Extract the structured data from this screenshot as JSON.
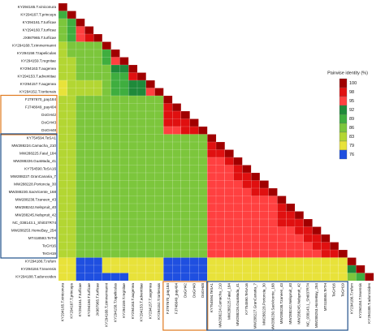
{
  "chart_data": {
    "type": "heatmap",
    "labels": [
      "KY294165.T.viniconura",
      "KY294167.T.princeps",
      "KY294161.T.turficae",
      "KY294160.T.turficae",
      "JX987965.T.turficae",
      "KY294168.T.zimmermanni",
      "KY294158.T.tapeliculas",
      "KY294159.T.regnitae",
      "KY294163.T.augenea",
      "KY294153.T.adventitae",
      "KY294157.T.augenea",
      "KY294152.T.tortienais",
      "FJ797670_pay184",
      "FJ748049_pay404",
      "DoGH42",
      "DoGH43",
      "DoGH48",
      "KY754594.TeSA1",
      "MW288224.Camacha_210",
      "MW288225.Faial_184",
      "MW288226.GuaMada_41",
      "KY754590.TeSA16",
      "MW288227.GranCanaria_7",
      "MW288228.Portoncia_30",
      "MW288230.SaoVicente_168",
      "MW288238.Tzaneen_43",
      "MW288242.Nelspruit_40",
      "MW288245.Nelspruit_42",
      "NC_038143.1_Shi037R74",
      "MW288253.HomeBay_254",
      "MT418593.TeTH",
      "TeGH16",
      "TeGH19",
      "KY294186.T.rufum",
      "KY294184.T.texensis",
      "KY294188.T.aduncoides"
    ],
    "matrix": [
      [
        100
      ],
      [
        91,
        100
      ],
      [
        87,
        89,
        100
      ],
      [
        87,
        89,
        97,
        100
      ],
      [
        87,
        89,
        97,
        99,
        100
      ],
      [
        85,
        86,
        88,
        88,
        88,
        100
      ],
      [
        84,
        86,
        87,
        87,
        87,
        90,
        100
      ],
      [
        84,
        85,
        87,
        87,
        87,
        89,
        96,
        100
      ],
      [
        83,
        85,
        86,
        86,
        86,
        88,
        92,
        92,
        100
      ],
      [
        83,
        84,
        86,
        86,
        86,
        88,
        91,
        91,
        98,
        100
      ],
      [
        82,
        84,
        85,
        85,
        85,
        87,
        90,
        90,
        93,
        93,
        100
      ],
      [
        82,
        83,
        85,
        85,
        85,
        87,
        89,
        89,
        92,
        92,
        95,
        100
      ],
      [
        84,
        85,
        86,
        86,
        86,
        86,
        87,
        87,
        86,
        86,
        86,
        86,
        100
      ],
      [
        84,
        85,
        86,
        86,
        86,
        86,
        87,
        87,
        86,
        86,
        86,
        86,
        99,
        100
      ],
      [
        84,
        85,
        86,
        86,
        86,
        86,
        87,
        87,
        86,
        86,
        86,
        86,
        98,
        99,
        100
      ],
      [
        84,
        85,
        86,
        86,
        86,
        86,
        87,
        87,
        86,
        86,
        86,
        86,
        98,
        98,
        99,
        100
      ],
      [
        84,
        84,
        86,
        86,
        86,
        86,
        87,
        87,
        86,
        86,
        86,
        86,
        97,
        97,
        98,
        98,
        100
      ],
      [
        84,
        85,
        86,
        86,
        86,
        86,
        87,
        87,
        86,
        86,
        86,
        86,
        88,
        88,
        88,
        88,
        88,
        100
      ],
      [
        84,
        85,
        86,
        86,
        86,
        86,
        87,
        87,
        86,
        86,
        86,
        86,
        88,
        88,
        88,
        88,
        88,
        99,
        100
      ],
      [
        84,
        85,
        86,
        86,
        86,
        86,
        87,
        87,
        86,
        86,
        86,
        86,
        88,
        88,
        88,
        88,
        88,
        98,
        99,
        100
      ],
      [
        84,
        85,
        86,
        86,
        86,
        86,
        87,
        87,
        86,
        86,
        86,
        86,
        88,
        88,
        88,
        88,
        88,
        97,
        97,
        98,
        100
      ],
      [
        84,
        85,
        86,
        86,
        86,
        86,
        87,
        87,
        86,
        86,
        86,
        86,
        88,
        88,
        88,
        88,
        88,
        97,
        97,
        97,
        99,
        100
      ],
      [
        84,
        85,
        86,
        86,
        86,
        86,
        87,
        87,
        86,
        86,
        86,
        86,
        88,
        88,
        88,
        88,
        88,
        97,
        97,
        97,
        98,
        99,
        100
      ],
      [
        84,
        85,
        86,
        86,
        86,
        86,
        87,
        87,
        86,
        86,
        86,
        86,
        88,
        88,
        88,
        88,
        88,
        96,
        96,
        97,
        97,
        98,
        98,
        100
      ],
      [
        84,
        85,
        86,
        86,
        86,
        86,
        87,
        87,
        86,
        86,
        86,
        86,
        88,
        88,
        88,
        88,
        88,
        96,
        96,
        96,
        97,
        97,
        98,
        99,
        100
      ],
      [
        84,
        85,
        86,
        86,
        86,
        86,
        87,
        87,
        86,
        86,
        86,
        86,
        88,
        88,
        88,
        88,
        88,
        96,
        96,
        96,
        96,
        97,
        97,
        97,
        97,
        100
      ],
      [
        84,
        85,
        86,
        86,
        86,
        86,
        87,
        87,
        86,
        86,
        86,
        86,
        88,
        88,
        88,
        88,
        88,
        96,
        96,
        96,
        96,
        97,
        97,
        97,
        97,
        99,
        100
      ],
      [
        84,
        85,
        86,
        86,
        86,
        86,
        87,
        87,
        86,
        86,
        86,
        86,
        88,
        88,
        88,
        88,
        88,
        96,
        96,
        96,
        96,
        96,
        97,
        97,
        97,
        98,
        99,
        100
      ],
      [
        84,
        85,
        86,
        86,
        86,
        86,
        87,
        87,
        86,
        86,
        86,
        86,
        88,
        88,
        88,
        88,
        88,
        96,
        96,
        96,
        96,
        96,
        96,
        97,
        97,
        98,
        98,
        99,
        100
      ],
      [
        84,
        85,
        86,
        86,
        86,
        86,
        87,
        87,
        86,
        86,
        86,
        86,
        88,
        88,
        88,
        88,
        88,
        95,
        95,
        96,
        96,
        96,
        96,
        96,
        96,
        97,
        97,
        98,
        98,
        100
      ],
      [
        84,
        85,
        86,
        86,
        86,
        86,
        87,
        87,
        86,
        86,
        86,
        86,
        88,
        88,
        88,
        88,
        88,
        95,
        95,
        95,
        96,
        96,
        96,
        96,
        96,
        97,
        97,
        97,
        98,
        99,
        100
      ],
      [
        84,
        85,
        86,
        86,
        86,
        86,
        87,
        87,
        86,
        86,
        86,
        86,
        88,
        88,
        88,
        88,
        88,
        95,
        95,
        95,
        95,
        96,
        96,
        96,
        96,
        96,
        97,
        97,
        97,
        98,
        99,
        100
      ],
      [
        84,
        85,
        86,
        86,
        86,
        86,
        87,
        87,
        86,
        86,
        86,
        86,
        88,
        88,
        88,
        88,
        88,
        95,
        95,
        95,
        95,
        95,
        96,
        96,
        96,
        96,
        96,
        97,
        97,
        97,
        98,
        99,
        100
      ],
      [
        80,
        80,
        77,
        77,
        77,
        79,
        79,
        79,
        80,
        80,
        80,
        80,
        77,
        77,
        77,
        77,
        77,
        80,
        80,
        80,
        80,
        80,
        80,
        80,
        80,
        80,
        80,
        80,
        80,
        80,
        80,
        80,
        80,
        100
      ],
      [
        80,
        80,
        77,
        77,
        77,
        79,
        79,
        79,
        80,
        80,
        80,
        80,
        77,
        77,
        77,
        77,
        77,
        80,
        80,
        80,
        80,
        80,
        80,
        80,
        80,
        80,
        80,
        80,
        80,
        80,
        80,
        80,
        80,
        92,
        100
      ],
      [
        79,
        79,
        76,
        76,
        76,
        78,
        78,
        78,
        79,
        79,
        79,
        79,
        76,
        76,
        76,
        76,
        76,
        79,
        79,
        79,
        79,
        79,
        79,
        79,
        79,
        79,
        79,
        79,
        79,
        79,
        79,
        79,
        79,
        88,
        89,
        100
      ]
    ],
    "legend": {
      "title": "Pairwise identity (%)",
      "ticks": [
        100,
        98,
        95,
        92,
        89,
        86,
        83,
        79,
        76
      ],
      "colors": [
        "#a00000",
        "#e01010",
        "#ff4040",
        "#1f8a3a",
        "#3fae3f",
        "#7cc63c",
        "#b3d633",
        "#e8e23a",
        "#1f4fe0"
      ]
    }
  }
}
